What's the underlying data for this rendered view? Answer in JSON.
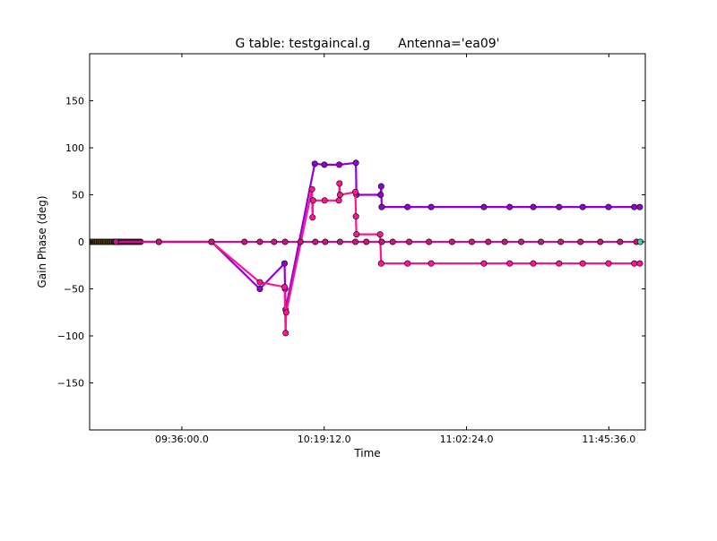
{
  "chart_data": {
    "type": "line",
    "title": "G table: testgaincal.g       Antenna='ea09'",
    "xlabel": "Time",
    "ylabel": "Gain Phase (deg)",
    "x_unit": "time of day",
    "xlim": [
      "09:08:00",
      "11:56:40"
    ],
    "ylim": [
      -200,
      200
    ],
    "x_ticks": [
      "09:36:00.0",
      "10:19:12.0",
      "11:02:24.0",
      "11:45:36.0"
    ],
    "y_ticks": [
      -150,
      -100,
      -50,
      0,
      50,
      100,
      150
    ],
    "grid": false,
    "legend": "none",
    "series": [
      {
        "color": "#9400d3",
        "points": [
          [
            "09:16:00",
            0
          ],
          [
            "09:29:00",
            0
          ],
          [
            "09:45:00",
            0
          ],
          [
            "09:59:40",
            -50
          ],
          [
            "10:07:10",
            -23
          ],
          [
            "10:07:20",
            -50
          ],
          [
            "10:07:30",
            -72
          ],
          [
            "10:16:20",
            83
          ],
          [
            "10:19:15",
            82
          ],
          [
            "10:23:45",
            82
          ],
          [
            "10:28:50",
            84
          ],
          [
            "10:29:00",
            50
          ],
          [
            "10:36:20",
            50
          ],
          [
            "10:36:30",
            59
          ],
          [
            "10:36:40",
            37
          ],
          [
            "10:44:30",
            37
          ],
          [
            "10:51:40",
            37
          ],
          [
            "11:07:40",
            37
          ],
          [
            "11:15:30",
            37
          ],
          [
            "11:22:40",
            37
          ],
          [
            "11:30:30",
            37
          ],
          [
            "11:37:40",
            37
          ],
          [
            "11:45:30",
            37
          ],
          [
            "11:53:20",
            37
          ],
          [
            "11:55:00",
            37
          ]
        ]
      },
      {
        "color": "#ff1493",
        "points": [
          [
            "09:16:00",
            0
          ],
          [
            "09:29:00",
            0
          ],
          [
            "09:45:00",
            0
          ],
          [
            "09:59:40",
            -43
          ],
          [
            "10:07:10",
            -48
          ],
          [
            "10:07:30",
            -97
          ],
          [
            "10:07:40",
            -75
          ],
          [
            "10:15:30",
            56
          ],
          [
            "10:15:40",
            26
          ],
          [
            "10:15:50",
            44
          ],
          [
            "10:19:20",
            44
          ],
          [
            "10:23:40",
            44
          ],
          [
            "10:23:50",
            62
          ],
          [
            "10:24:00",
            50
          ],
          [
            "10:28:40",
            53
          ],
          [
            "10:28:50",
            27
          ],
          [
            "10:29:00",
            8
          ],
          [
            "10:36:10",
            8
          ],
          [
            "10:36:30",
            -23
          ],
          [
            "10:44:30",
            -23
          ],
          [
            "10:51:40",
            -23
          ],
          [
            "11:07:40",
            -23
          ],
          [
            "11:15:30",
            -23
          ],
          [
            "11:22:40",
            -23
          ],
          [
            "11:30:30",
            -23
          ],
          [
            "11:37:40",
            -23
          ],
          [
            "11:45:30",
            -23
          ],
          [
            "11:53:20",
            -23
          ],
          [
            "11:55:00",
            -23
          ]
        ]
      },
      {
        "color": "#c71585",
        "points": [
          [
            "09:16:00",
            0
          ],
          [
            "09:29:00",
            0
          ],
          [
            "09:45:00",
            0
          ],
          [
            "09:55:00",
            0
          ],
          [
            "09:59:40",
            0
          ],
          [
            "10:04:00",
            0
          ],
          [
            "10:07:20",
            0
          ],
          [
            "10:12:00",
            0
          ],
          [
            "10:16:30",
            0
          ],
          [
            "10:19:30",
            0
          ],
          [
            "10:24:00",
            0
          ],
          [
            "10:28:40",
            0
          ],
          [
            "10:32:00",
            0
          ],
          [
            "10:36:40",
            0
          ],
          [
            "10:40:00",
            0
          ],
          [
            "10:45:00",
            0
          ],
          [
            "10:51:00",
            0
          ],
          [
            "10:58:00",
            0
          ],
          [
            "11:04:00",
            0
          ],
          [
            "11:09:00",
            0
          ],
          [
            "11:14:00",
            0
          ],
          [
            "11:19:00",
            0
          ],
          [
            "11:25:00",
            0
          ],
          [
            "11:31:00",
            0
          ],
          [
            "11:37:00",
            0
          ],
          [
            "11:43:00",
            0
          ],
          [
            "11:49:00",
            0
          ],
          [
            "11:54:00",
            0
          ]
        ]
      }
    ]
  }
}
